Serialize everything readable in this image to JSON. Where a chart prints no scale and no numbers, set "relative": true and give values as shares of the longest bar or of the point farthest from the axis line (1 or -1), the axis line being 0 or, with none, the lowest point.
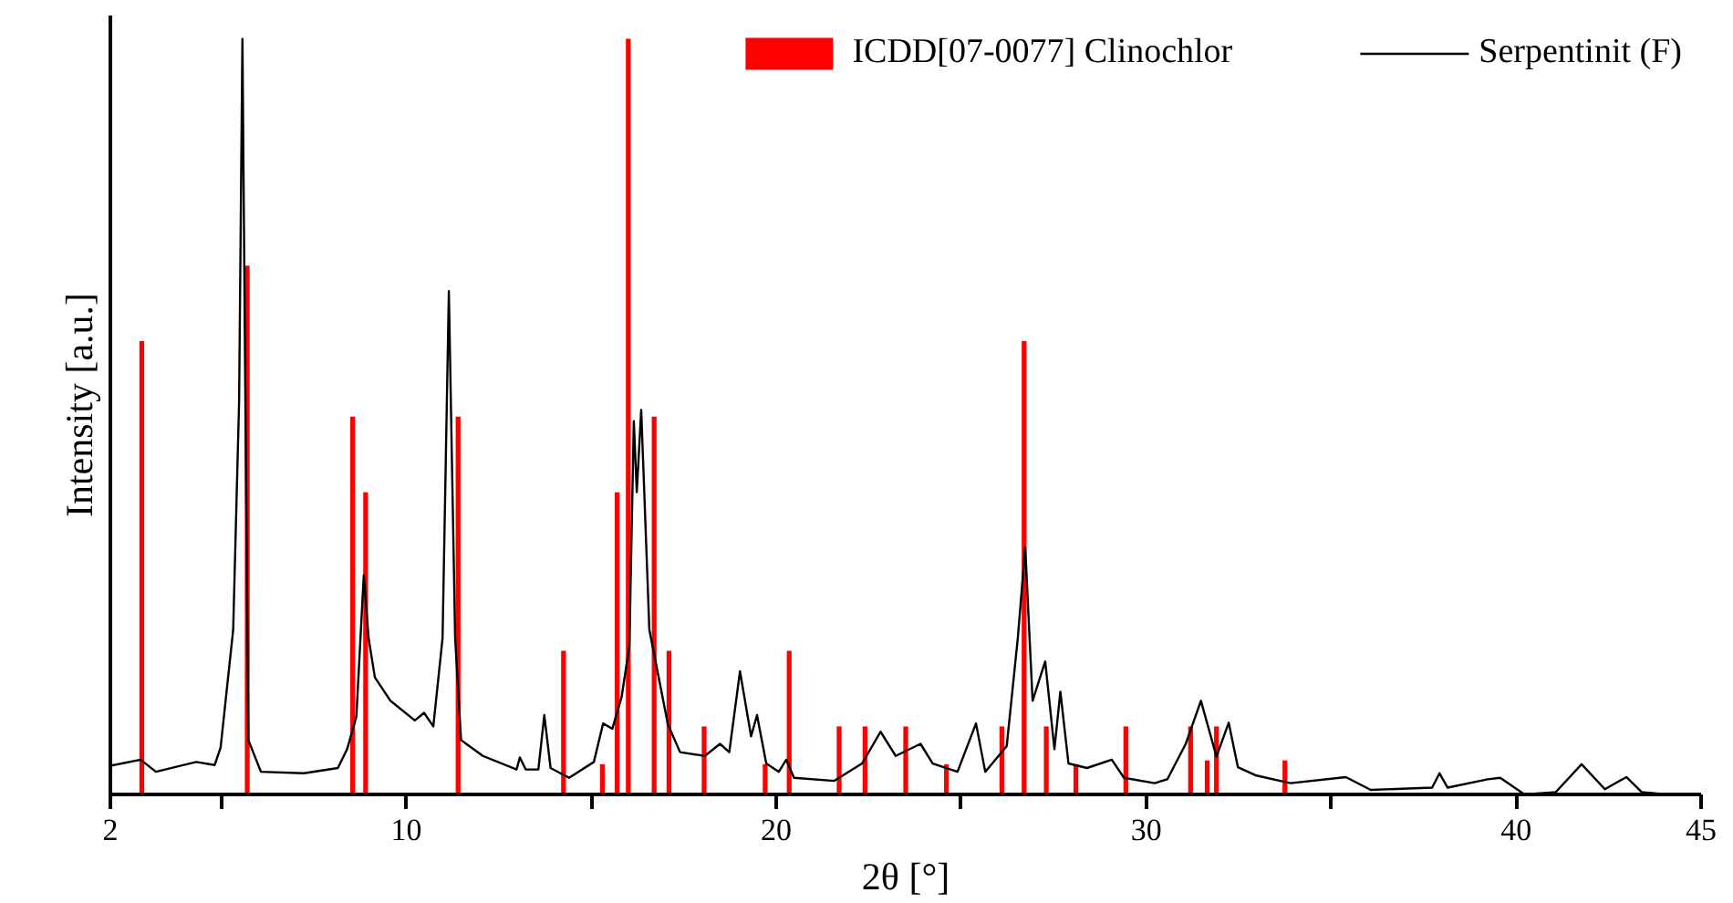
{
  "chart_data": {
    "type": "line",
    "xlabel": "2θ [°]",
    "ylabel": "Intensity [a.u.]",
    "relative": true,
    "xlim": [
      2,
      45
    ],
    "xticks": [
      2,
      {
        "value": 5,
        "label": null
      },
      10,
      {
        "value": 15,
        "label": null
      },
      20,
      {
        "value": 25,
        "label": null
      },
      30,
      {
        "value": 35,
        "label": null
      },
      40,
      45
    ],
    "grid": false,
    "legend": "top right",
    "tick_labels": "x",
    "series": [
      {
        "name": "ICDD[07-0077] Clinochlor",
        "type": "bar",
        "color": "#ff0000",
        "x": [
          2.85,
          5.7,
          8.55,
          8.9,
          11.4,
          14.25,
          15.3,
          15.7,
          16.0,
          16.7,
          17.1,
          18.05,
          19.7,
          20.35,
          21.7,
          22.4,
          23.5,
          24.6,
          26.1,
          26.7,
          27.3,
          28.1,
          29.45,
          31.2,
          31.65,
          31.9,
          33.75
        ],
        "values": [
          0.6,
          0.7,
          0.5,
          0.4,
          0.5,
          0.19,
          0.04,
          0.4,
          1.0,
          0.5,
          0.19,
          0.09,
          0.04,
          0.19,
          0.09,
          0.09,
          0.09,
          0.04,
          0.09,
          0.6,
          0.09,
          0.04,
          0.09,
          0.09,
          0.045,
          0.09,
          0.045
        ]
      },
      {
        "name": "Serpentinit (F)",
        "color": "#000000",
        "x": [
          2.0,
          2.82,
          3.23,
          4.32,
          4.82,
          4.98,
          5.32,
          5.48,
          5.57,
          5.65,
          5.73,
          6.07,
          7.23,
          8.15,
          8.4,
          8.65,
          8.85,
          8.98,
          9.15,
          9.57,
          10.23,
          10.48,
          10.73,
          10.98,
          11.15,
          11.32,
          11.48,
          12.07,
          12.98,
          13.07,
          13.23,
          13.57,
          13.73,
          13.9,
          14.4,
          15.07,
          15.32,
          15.57,
          15.82,
          16.03,
          16.15,
          16.23,
          16.35,
          16.57,
          17.07,
          17.4,
          18.07,
          18.48,
          18.73,
          19.02,
          19.32,
          19.48,
          19.73,
          20.07,
          20.27,
          20.48,
          21.57,
          22.32,
          22.82,
          23.23,
          23.9,
          24.23,
          24.9,
          25.4,
          25.65,
          26.23,
          26.53,
          26.73,
          26.93,
          27.27,
          27.52,
          27.68,
          27.9,
          28.4,
          29.07,
          29.4,
          30.23,
          30.57,
          31.07,
          31.48,
          31.9,
          32.23,
          32.48,
          32.98,
          33.9,
          35.4,
          36.07,
          37.73,
          37.93,
          38.15,
          39.23,
          39.57,
          40.23,
          41.07,
          41.77,
          42.4,
          42.98,
          43.4,
          44.07,
          45.0
        ],
        "values": [
          0.038,
          0.046,
          0.03,
          0.043,
          0.039,
          0.062,
          0.218,
          0.52,
          1.0,
          0.52,
          0.072,
          0.03,
          0.028,
          0.035,
          0.06,
          0.103,
          0.29,
          0.207,
          0.155,
          0.124,
          0.098,
          0.108,
          0.09,
          0.207,
          0.666,
          0.207,
          0.072,
          0.051,
          0.033,
          0.049,
          0.033,
          0.033,
          0.105,
          0.035,
          0.022,
          0.043,
          0.094,
          0.087,
          0.129,
          0.197,
          0.494,
          0.4,
          0.509,
          0.218,
          0.093,
          0.056,
          0.051,
          0.067,
          0.056,
          0.163,
          0.077,
          0.105,
          0.041,
          0.03,
          0.046,
          0.022,
          0.018,
          0.041,
          0.083,
          0.051,
          0.067,
          0.041,
          0.03,
          0.094,
          0.03,
          0.064,
          0.207,
          0.327,
          0.124,
          0.176,
          0.06,
          0.136,
          0.041,
          0.035,
          0.046,
          0.022,
          0.015,
          0.02,
          0.067,
          0.124,
          0.05,
          0.095,
          0.036,
          0.025,
          0.015,
          0.023,
          0.006,
          0.009,
          0.028,
          0.009,
          0.02,
          0.022,
          0.0,
          0.003,
          0.04,
          0.007,
          0.023,
          0.003,
          0.0,
          0.0
        ]
      }
    ]
  }
}
